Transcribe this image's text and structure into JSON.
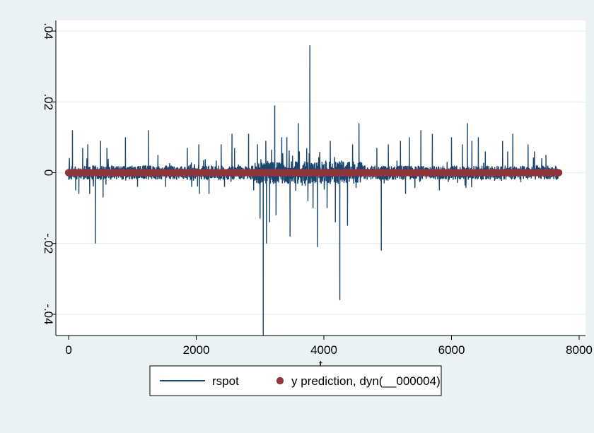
{
  "colors": {
    "background": "#eaf2f3",
    "plot_area": "#ffffff",
    "gridline": "#eaf2f3",
    "rspot": "#1a476f",
    "prediction": "#90353b"
  },
  "chart_data": {
    "type": "line",
    "title": "",
    "xlabel": "t",
    "ylabel": "",
    "xlim": [
      -200,
      8100
    ],
    "ylim": [
      -0.046,
      0.043
    ],
    "x_ticks": [
      0,
      2000,
      4000,
      6000,
      8000
    ],
    "x_tick_labels": [
      "0",
      "2000",
      "4000",
      "6000",
      "8000"
    ],
    "y_ticks": [
      -0.04,
      -0.02,
      0,
      0.02,
      0.04
    ],
    "y_tick_labels": [
      "-.04",
      "-.02",
      "0",
      ".02",
      ".04"
    ],
    "y_tick_labels_rotated": true,
    "grid": true,
    "legend_position": "bottom",
    "x_range": [
      0,
      7680
    ],
    "series": [
      {
        "name": "rspot",
        "kind": "line",
        "color": "#1a476f",
        "typical_amplitude": 0.002,
        "spikes": [
          {
            "x": 60,
            "y": 0.012
          },
          {
            "x": 110,
            "y": -0.005
          },
          {
            "x": 160,
            "y": -0.006
          },
          {
            "x": 220,
            "y": 0.007
          },
          {
            "x": 300,
            "y": 0.008
          },
          {
            "x": 330,
            "y": -0.006
          },
          {
            "x": 420,
            "y": -0.02
          },
          {
            "x": 500,
            "y": 0.009
          },
          {
            "x": 540,
            "y": -0.007
          },
          {
            "x": 600,
            "y": 0.007
          },
          {
            "x": 890,
            "y": 0.01
          },
          {
            "x": 1080,
            "y": -0.004
          },
          {
            "x": 1250,
            "y": 0.012
          },
          {
            "x": 1400,
            "y": 0.005
          },
          {
            "x": 1520,
            "y": -0.004
          },
          {
            "x": 1860,
            "y": 0.007
          },
          {
            "x": 2050,
            "y": -0.006
          },
          {
            "x": 2040,
            "y": 0.008
          },
          {
            "x": 2200,
            "y": -0.006
          },
          {
            "x": 2390,
            "y": 0.008
          },
          {
            "x": 2560,
            "y": 0.011
          },
          {
            "x": 2600,
            "y": 0.007
          },
          {
            "x": 2820,
            "y": 0.011
          },
          {
            "x": 2900,
            "y": -0.005
          },
          {
            "x": 2960,
            "y": 0.008
          },
          {
            "x": 3000,
            "y": -0.013
          },
          {
            "x": 3050,
            "y": -0.046
          },
          {
            "x": 3090,
            "y": 0.009
          },
          {
            "x": 3100,
            "y": -0.02
          },
          {
            "x": 3150,
            "y": -0.014
          },
          {
            "x": 3230,
            "y": 0.019
          },
          {
            "x": 3250,
            "y": -0.012
          },
          {
            "x": 3340,
            "y": 0.01
          },
          {
            "x": 3420,
            "y": 0.01
          },
          {
            "x": 3470,
            "y": -0.018
          },
          {
            "x": 3600,
            "y": 0.014
          },
          {
            "x": 3750,
            "y": -0.008
          },
          {
            "x": 3780,
            "y": 0.036
          },
          {
            "x": 3830,
            "y": -0.01
          },
          {
            "x": 3900,
            "y": -0.021
          },
          {
            "x": 4050,
            "y": -0.01
          },
          {
            "x": 4100,
            "y": 0.009
          },
          {
            "x": 4180,
            "y": -0.014
          },
          {
            "x": 4250,
            "y": -0.036
          },
          {
            "x": 4370,
            "y": -0.015
          },
          {
            "x": 4450,
            "y": 0.008
          },
          {
            "x": 4550,
            "y": 0.014
          },
          {
            "x": 4830,
            "y": 0.007
          },
          {
            "x": 4900,
            "y": -0.022
          },
          {
            "x": 5010,
            "y": 0.008
          },
          {
            "x": 5200,
            "y": 0.009
          },
          {
            "x": 5280,
            "y": -0.006
          },
          {
            "x": 5340,
            "y": 0.01
          },
          {
            "x": 5520,
            "y": 0.012
          },
          {
            "x": 5700,
            "y": 0.011
          },
          {
            "x": 5810,
            "y": -0.005
          },
          {
            "x": 6000,
            "y": 0.01
          },
          {
            "x": 6170,
            "y": 0.008
          },
          {
            "x": 6250,
            "y": 0.014
          },
          {
            "x": 6320,
            "y": 0.009
          },
          {
            "x": 6420,
            "y": 0.01
          },
          {
            "x": 6530,
            "y": 0.006
          },
          {
            "x": 6800,
            "y": 0.009
          },
          {
            "x": 6880,
            "y": 0.006
          },
          {
            "x": 6960,
            "y": 0.011
          },
          {
            "x": 7200,
            "y": 0.008
          },
          {
            "x": 7300,
            "y": 0.006
          },
          {
            "x": 7480,
            "y": 0.005
          }
        ]
      },
      {
        "name": "y prediction, dyn(__000004)",
        "kind": "scatter",
        "color": "#90353b",
        "constant_y": 0
      }
    ]
  }
}
